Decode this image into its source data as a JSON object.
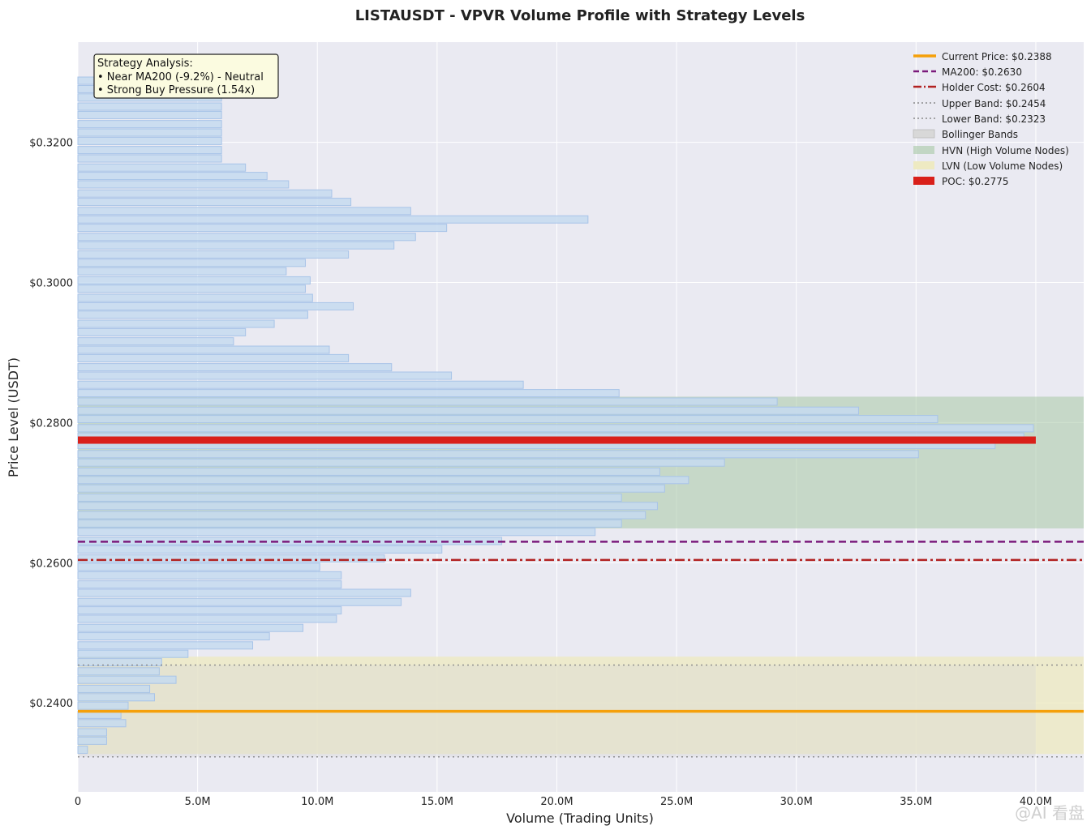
{
  "chart_data": {
    "type": "bar",
    "orientation": "horizontal",
    "title": "LISTAUSDT - VPVR Volume Profile with Strategy Levels",
    "xlabel": "Volume (Trading Units)",
    "ylabel": "Price Level (USDT)",
    "xlim": [
      0,
      42000000
    ],
    "ylim": [
      0.2273,
      0.3343
    ],
    "grid": true,
    "x_ticks": [
      0,
      5000000,
      10000000,
      15000000,
      20000000,
      25000000,
      30000000,
      35000000,
      40000000
    ],
    "x_tick_labels": [
      "0",
      "5.0M",
      "10.0M",
      "15.0M",
      "20.0M",
      "25.0M",
      "30.0M",
      "35.0M",
      "40.0M"
    ],
    "y_ticks": [
      0.24,
      0.26,
      0.28,
      0.3,
      0.32
    ],
    "y_tick_labels": [
      "$0.2400",
      "$0.2600",
      "$0.2800",
      "$0.3000",
      "$0.3200"
    ],
    "bar_color": "#c5daf0",
    "bar_edge_color": "#a8c4e8",
    "bars": [
      {
        "price": 0.3288,
        "volume": 6000000
      },
      {
        "price": 0.3276,
        "volume": 6000000
      },
      {
        "price": 0.3264,
        "volume": 6000000
      },
      {
        "price": 0.3251,
        "volume": 6000000
      },
      {
        "price": 0.3239,
        "volume": 6000000
      },
      {
        "price": 0.3226,
        "volume": 6000000
      },
      {
        "price": 0.3214,
        "volume": 6000000
      },
      {
        "price": 0.3202,
        "volume": 6000000
      },
      {
        "price": 0.3189,
        "volume": 6000000
      },
      {
        "price": 0.3177,
        "volume": 6000000
      },
      {
        "price": 0.3164,
        "volume": 7000000
      },
      {
        "price": 0.3152,
        "volume": 7900000
      },
      {
        "price": 0.314,
        "volume": 8800000
      },
      {
        "price": 0.3127,
        "volume": 10600000
      },
      {
        "price": 0.3115,
        "volume": 11400000
      },
      {
        "price": 0.3102,
        "volume": 13900000
      },
      {
        "price": 0.309,
        "volume": 21300000
      },
      {
        "price": 0.3078,
        "volume": 15400000
      },
      {
        "price": 0.3065,
        "volume": 14100000
      },
      {
        "price": 0.3053,
        "volume": 13200000
      },
      {
        "price": 0.304,
        "volume": 11300000
      },
      {
        "price": 0.3028,
        "volume": 9500000
      },
      {
        "price": 0.3016,
        "volume": 8700000
      },
      {
        "price": 0.3003,
        "volume": 9700000
      },
      {
        "price": 0.2991,
        "volume": 9500000
      },
      {
        "price": 0.2978,
        "volume": 9800000
      },
      {
        "price": 0.2966,
        "volume": 11500000
      },
      {
        "price": 0.2954,
        "volume": 9600000
      },
      {
        "price": 0.2941,
        "volume": 8200000
      },
      {
        "price": 0.2929,
        "volume": 7000000
      },
      {
        "price": 0.2916,
        "volume": 6500000
      },
      {
        "price": 0.2904,
        "volume": 10500000
      },
      {
        "price": 0.2892,
        "volume": 11300000
      },
      {
        "price": 0.2879,
        "volume": 13100000
      },
      {
        "price": 0.2867,
        "volume": 15600000
      },
      {
        "price": 0.2854,
        "volume": 18600000
      },
      {
        "price": 0.2842,
        "volume": 22600000
      },
      {
        "price": 0.283,
        "volume": 29200000
      },
      {
        "price": 0.2817,
        "volume": 32600000
      },
      {
        "price": 0.2805,
        "volume": 35900000
      },
      {
        "price": 0.2792,
        "volume": 39900000
      },
      {
        "price": 0.278,
        "volume": 39500000
      },
      {
        "price": 0.2768,
        "volume": 38300000
      },
      {
        "price": 0.2755,
        "volume": 35100000
      },
      {
        "price": 0.2743,
        "volume": 27000000
      },
      {
        "price": 0.273,
        "volume": 24300000
      },
      {
        "price": 0.2718,
        "volume": 25500000
      },
      {
        "price": 0.2706,
        "volume": 24500000
      },
      {
        "price": 0.2693,
        "volume": 22700000
      },
      {
        "price": 0.2681,
        "volume": 24200000
      },
      {
        "price": 0.2668,
        "volume": 23700000
      },
      {
        "price": 0.2656,
        "volume": 22700000
      },
      {
        "price": 0.2644,
        "volume": 21600000
      },
      {
        "price": 0.2631,
        "volume": 17700000
      },
      {
        "price": 0.2619,
        "volume": 15200000
      },
      {
        "price": 0.2606,
        "volume": 12800000
      },
      {
        "price": 0.2594,
        "volume": 10100000
      },
      {
        "price": 0.2582,
        "volume": 11000000
      },
      {
        "price": 0.2569,
        "volume": 11000000
      },
      {
        "price": 0.2557,
        "volume": 13900000
      },
      {
        "price": 0.2544,
        "volume": 13500000
      },
      {
        "price": 0.2532,
        "volume": 11000000
      },
      {
        "price": 0.252,
        "volume": 10800000
      },
      {
        "price": 0.2507,
        "volume": 9400000
      },
      {
        "price": 0.2495,
        "volume": 8000000
      },
      {
        "price": 0.2482,
        "volume": 7300000
      },
      {
        "price": 0.247,
        "volume": 4600000
      },
      {
        "price": 0.2458,
        "volume": 3500000
      },
      {
        "price": 0.2445,
        "volume": 3400000
      },
      {
        "price": 0.2433,
        "volume": 4100000
      },
      {
        "price": 0.242,
        "volume": 3000000
      },
      {
        "price": 0.2408,
        "volume": 3200000
      },
      {
        "price": 0.2396,
        "volume": 2100000
      },
      {
        "price": 0.2383,
        "volume": 1800000
      },
      {
        "price": 0.2371,
        "volume": 2000000
      },
      {
        "price": 0.2358,
        "volume": 1200000
      },
      {
        "price": 0.2346,
        "volume": 1200000
      },
      {
        "price": 0.2333,
        "volume": 400000
      }
    ],
    "levels": {
      "current_price": {
        "label": "Current Price: $0.2388",
        "price": 0.2388,
        "color": "#f5a00a",
        "style": "solid"
      },
      "ma200": {
        "label": "MA200: $0.2630",
        "price": 0.263,
        "color": "#7b1a7b",
        "style": "dashed"
      },
      "holder_cost": {
        "label": "Holder Cost: $0.2604",
        "price": 0.2604,
        "color": "#b22222",
        "style": "dashdot"
      },
      "upper_band": {
        "label": "Upper Band: $0.2454",
        "price": 0.2454,
        "color": "#8a8a8a",
        "style": "dotted"
      },
      "lower_band": {
        "label": "Lower Band: $0.2323",
        "price": 0.2323,
        "color": "#8a8a8a",
        "style": "dotted"
      }
    },
    "zones": {
      "bollinger": {
        "label": "Bollinger Bands",
        "from": 0.2323,
        "to": 0.2454,
        "color": "#d8d8d8"
      },
      "hvn": {
        "label": "HVN (High Volume Nodes)",
        "from": 0.2649,
        "to": 0.2837,
        "color": "#a7c8a5"
      },
      "lvn": {
        "label": "LVN (Low Volume Nodes)",
        "from": 0.2327,
        "to": 0.2466,
        "color": "#eeeac2"
      }
    },
    "poc": {
      "label": "POC: $0.2775",
      "price": 0.2775,
      "volume": 40000000,
      "color": "#d9201a"
    },
    "legend_position": "top-right",
    "annotation": {
      "lines": [
        "Strategy Analysis:",
        "• Near MA200 (-9.2%) - Neutral",
        "• Strong Buy Pressure (1.54x)"
      ],
      "position": "top-left"
    },
    "watermark": "@AI 看盘"
  }
}
